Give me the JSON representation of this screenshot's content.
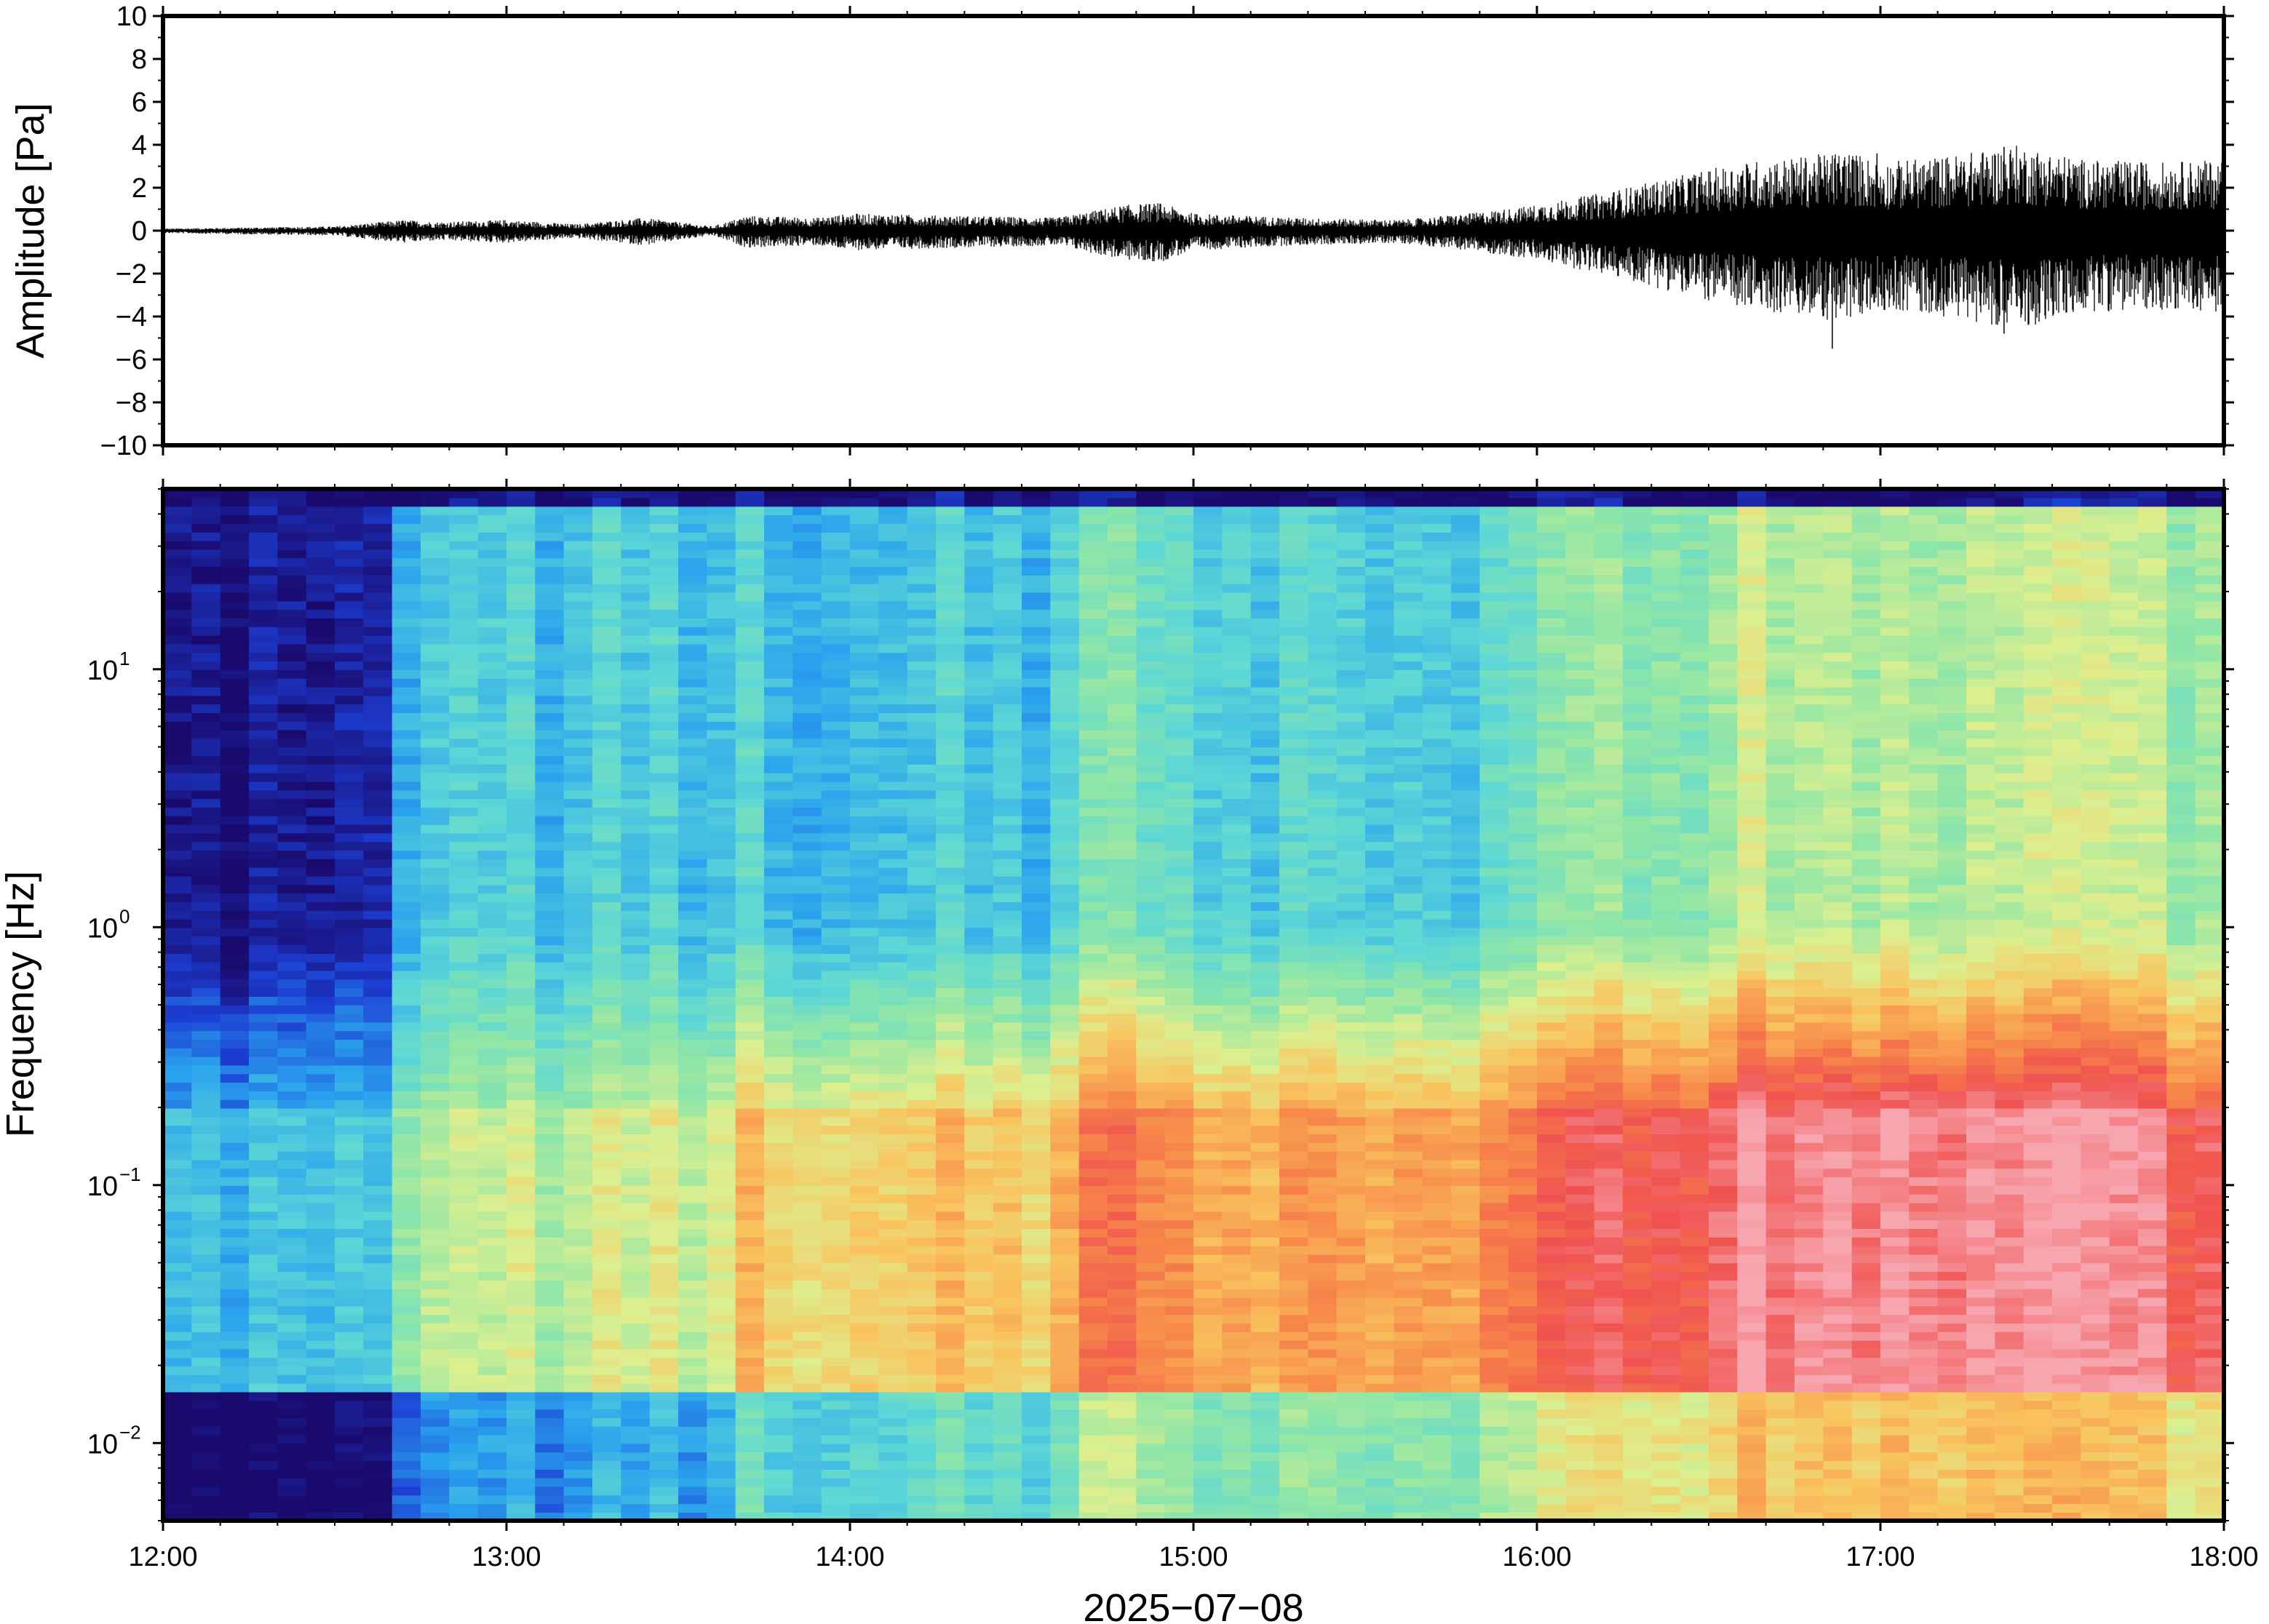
{
  "chart_data": [
    {
      "type": "line",
      "panel": "waveform",
      "xlabel": "",
      "ylabel": "Amplitude [Pa]",
      "ylim": [
        -10,
        10
      ],
      "y_ticks": [
        10,
        8,
        6,
        4,
        2,
        0,
        -2,
        -4,
        -6,
        -8,
        -10
      ],
      "y_tick_labels": [
        "10",
        "8",
        "6",
        "4",
        "2",
        "0",
        "−2",
        "−4",
        "−6",
        "−8",
        "−10"
      ],
      "x_range_hours": [
        12,
        18
      ],
      "envelope": {
        "hours": [
          12.0,
          12.5,
          12.7,
          12.8,
          13.0,
          13.2,
          13.4,
          13.6,
          13.7,
          13.9,
          14.0,
          14.3,
          14.6,
          14.8,
          14.9,
          15.0,
          15.3,
          15.6,
          15.8,
          16.0,
          16.2,
          16.4,
          16.6,
          16.8,
          16.9,
          17.0,
          17.2,
          17.4,
          17.6,
          17.8,
          18.0
        ],
        "amplitude_pa": [
          0.1,
          0.2,
          0.5,
          0.4,
          0.5,
          0.3,
          0.6,
          0.2,
          0.7,
          0.6,
          0.8,
          0.7,
          0.6,
          1.2,
          1.3,
          0.8,
          0.6,
          0.5,
          0.8,
          1.2,
          1.8,
          2.5,
          3.2,
          3.5,
          3.8,
          3.2,
          3.5,
          4.0,
          3.3,
          3.2,
          3.3
        ]
      },
      "spikes": [
        {
          "hour": 16.86,
          "value": -5.5
        },
        {
          "hour": 17.36,
          "value": -4.8
        },
        {
          "hour": 17.36,
          "value": 3.9
        },
        {
          "hour": 16.99,
          "value": 3.6
        }
      ]
    },
    {
      "type": "heatmap",
      "panel": "spectrogram",
      "ylabel": "Frequency [Hz]",
      "yscale": "log",
      "ylim_hz": [
        0.005,
        50
      ],
      "y_ticks": [
        {
          "base": "10",
          "exp": "1"
        },
        {
          "base": "10",
          "exp": "0"
        },
        {
          "base": "10",
          "exp": "−1"
        },
        {
          "base": "10",
          "exp": "−2"
        }
      ],
      "x_ticks": [
        "12:00",
        "13:00",
        "14:00",
        "15:00",
        "16:00",
        "17:00",
        "18:00"
      ],
      "xlabel": "2025−07−08",
      "colormap": "rainbow",
      "colormap_stops": [
        "#1a0a6e",
        "#1c3fd4",
        "#2aa3ee",
        "#5cd7d6",
        "#8ee6a8",
        "#dcef8f",
        "#f9c45e",
        "#f7894a",
        "#f0524f",
        "#f7a5ae"
      ],
      "relative_power_columns_hours": [
        12.0,
        12.6,
        12.7,
        13.6,
        13.7,
        14.6,
        14.7,
        15.1,
        15.8,
        16.0,
        16.3,
        16.6,
        17.0,
        17.5,
        18.0
      ],
      "relative_power_low_freq": [
        0.25,
        0.25,
        0.45,
        0.5,
        0.6,
        0.6,
        0.75,
        0.7,
        0.7,
        0.8,
        0.85,
        0.9,
        0.95,
        0.9,
        0.88
      ],
      "relative_power_high_freq": [
        0.05,
        0.05,
        0.3,
        0.3,
        0.3,
        0.28,
        0.4,
        0.35,
        0.32,
        0.42,
        0.45,
        0.5,
        0.52,
        0.5,
        0.5
      ]
    }
  ]
}
